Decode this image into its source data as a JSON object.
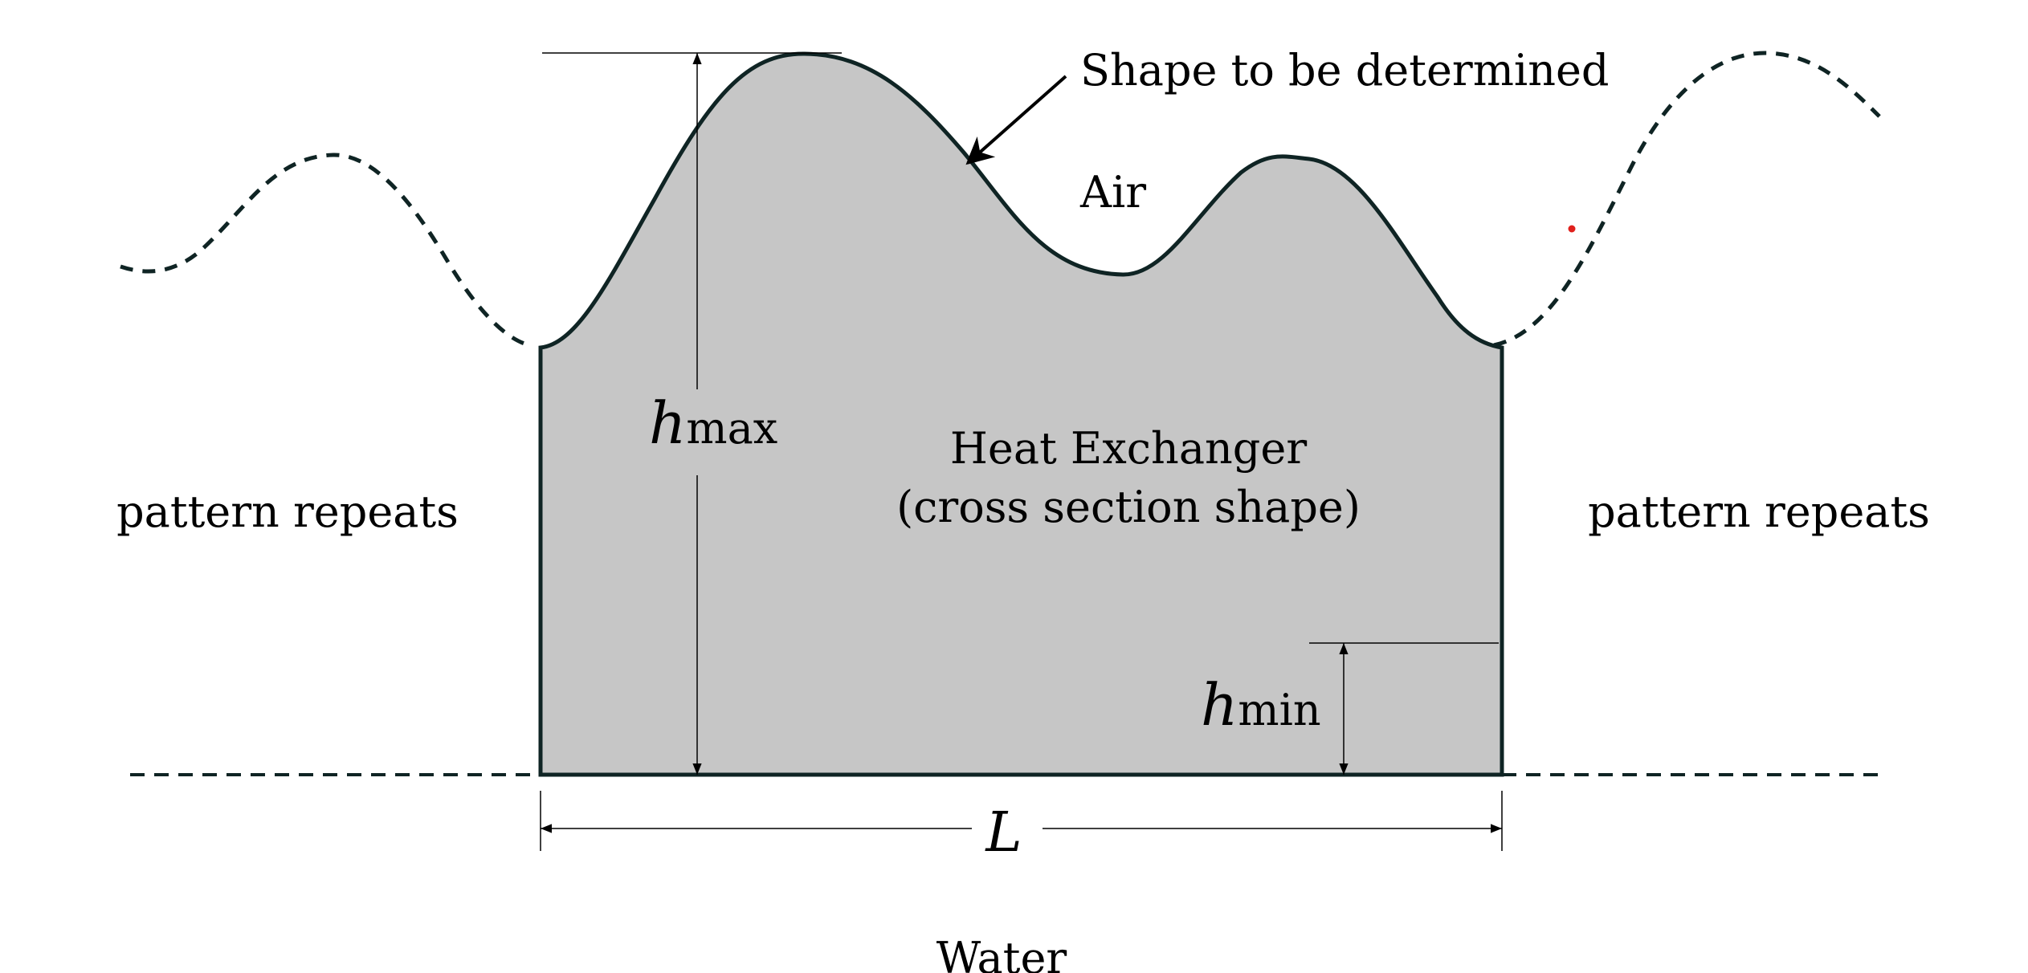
{
  "labels": {
    "shape_to_be_determined": "Shape to be determined",
    "air": "Air",
    "heat_exchanger_line1": "Heat Exchanger",
    "heat_exchanger_line2": "(cross section shape)",
    "pattern_repeats_left": "pattern repeats",
    "pattern_repeats_right": "pattern repeats",
    "water": "Water"
  },
  "dimensions": {
    "h_max": {
      "symbol": "h",
      "subscript": "max"
    },
    "h_min": {
      "symbol": "h",
      "subscript": "min"
    },
    "L": {
      "symbol": "L"
    }
  },
  "colors": {
    "fill": "#c6c6c6",
    "outline": "#0f2424",
    "dimension_line": "#000000",
    "marker_dot": "#e0201c"
  }
}
